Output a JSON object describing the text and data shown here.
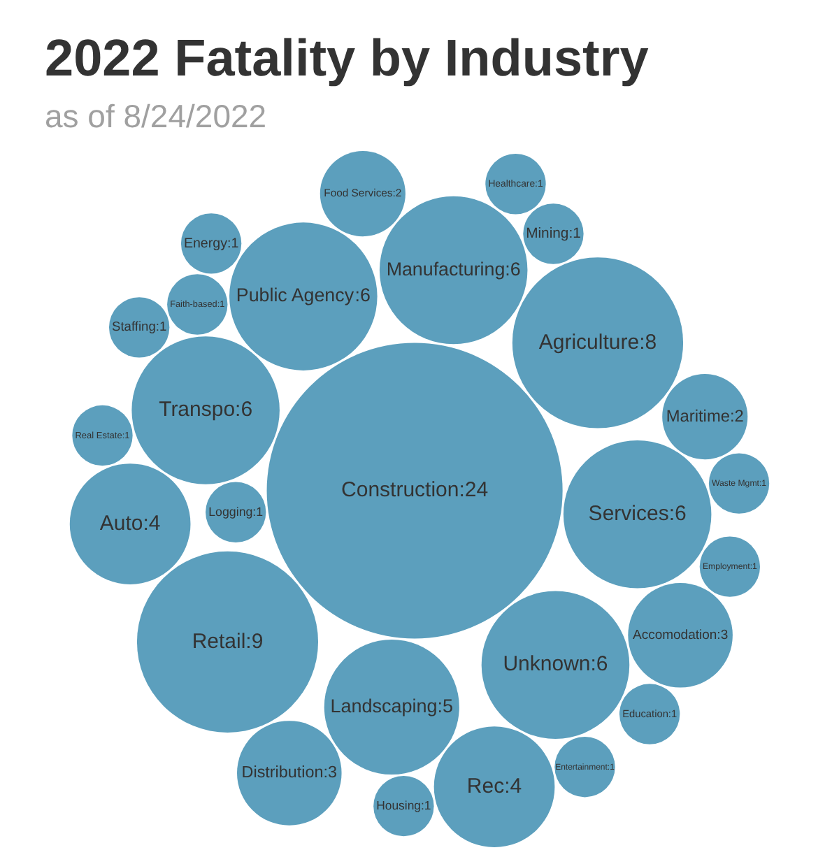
{
  "chart_data": {
    "type": "other",
    "title": "2022 Fatality by Industry",
    "subtitle": "as of 8/24/2022",
    "categories": [
      "Construction",
      "Retail",
      "Agriculture",
      "Unknown",
      "Manufacturing",
      "Transpo",
      "Public Agency",
      "Services",
      "Landscaping",
      "Auto",
      "Rec",
      "Accomodation",
      "Distribution",
      "Maritime",
      "Food Services",
      "Logging",
      "Faith-based",
      "Mining",
      "Housing",
      "Real Estate",
      "Staffing",
      "Energy",
      "Healthcare",
      "Employment",
      "Education",
      "Waste Mgmt",
      "Entertainment"
    ],
    "values": [
      24,
      9,
      8,
      6,
      6,
      6,
      6,
      6,
      5,
      4,
      4,
      3,
      3,
      2,
      2,
      1,
      1,
      1,
      1,
      1,
      1,
      1,
      1,
      1,
      1,
      1,
      1
    ],
    "value_labels": [
      ":24",
      ":9",
      ":8",
      ":6",
      ":6",
      ":6",
      ":6",
      ":6",
      ":5",
      ":4",
      ":4",
      ":3",
      ":3",
      ":2",
      ":2",
      ":1",
      ":1",
      ":1",
      ":1",
      ":1",
      ":1",
      ":1",
      ":1",
      ":1",
      ":1",
      ":1",
      ":1"
    ],
    "color": "#5c9fbd"
  }
}
